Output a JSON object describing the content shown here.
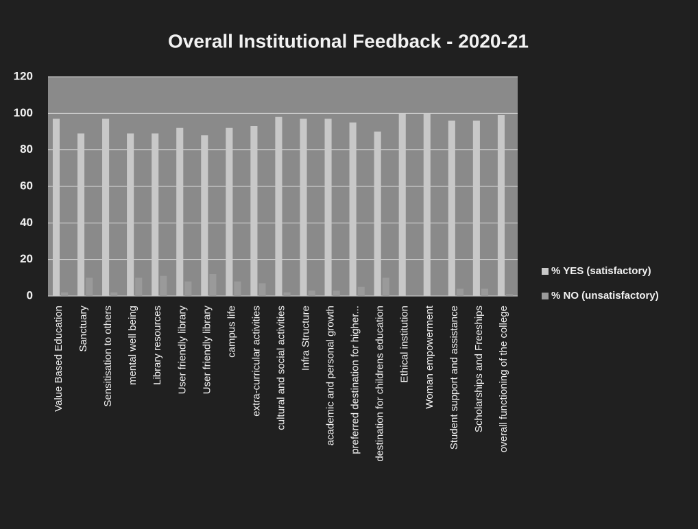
{
  "chart_data": {
    "type": "bar",
    "title": "Overall Institutional Feedback - 2020-21",
    "categories": [
      "Value Based Education",
      "Sanctuary",
      "Sensitisation to others",
      "mental well being",
      "Library resources",
      "User friendly library",
      "User friendly library",
      "campus life",
      "extra-curricular activities",
      "cultural and social activities",
      "Infra Structure",
      "academic and personal growth",
      "preferred destination for higher...",
      "destination for childrens education",
      "Ethical institution",
      "Woman empowerment",
      "Student support and assistance",
      "Scholarships and Freeships",
      "overall functioning of the college"
    ],
    "series": [
      {
        "name": "% YES (satisfactory)",
        "color": "#c8c8c8",
        "values": [
          97,
          89,
          97,
          89,
          89,
          92,
          88,
          92,
          93,
          98,
          97,
          97,
          95,
          90,
          100,
          100,
          96,
          96,
          99
        ]
      },
      {
        "name": "% NO (unsatisfactory)",
        "color": "#9a9a9a",
        "values": [
          2,
          10,
          2,
          10,
          11,
          8,
          12,
          8,
          7,
          2,
          3,
          3,
          5,
          10,
          0,
          0,
          4,
          4,
          1
        ]
      }
    ],
    "ylim": [
      0,
      120
    ],
    "yticks": [
      0,
      20,
      40,
      60,
      80,
      100,
      120
    ],
    "grid": true,
    "legend": "right"
  }
}
